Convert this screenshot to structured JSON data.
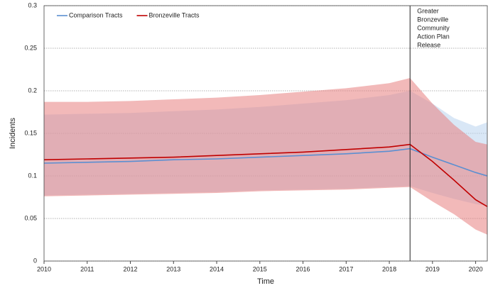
{
  "chart_data": {
    "type": "line",
    "x_label": "Time",
    "y_label": "Incidents",
    "x": [
      2010,
      2011,
      2012,
      2013,
      2014,
      2015,
      2016,
      2017,
      2018,
      2018.48,
      2019,
      2019.5,
      2020,
      2020.27
    ],
    "xlim": [
      2010,
      2020.27
    ],
    "xticks": [
      2010,
      2011,
      2012,
      2013,
      2014,
      2015,
      2016,
      2017,
      2018,
      2019,
      2020
    ],
    "ylim": [
      0,
      0.3
    ],
    "yticks": [
      0,
      0.05,
      0.1,
      0.15,
      0.2,
      0.25,
      0.3
    ],
    "grid": true,
    "legend": "top-left",
    "series": [
      {
        "name": "Comparison Tracts",
        "color": "#5b8fd1",
        "band_color": "#b9d3ee",
        "values": [
          0.115,
          0.116,
          0.117,
          0.119,
          0.12,
          0.122,
          0.124,
          0.126,
          0.129,
          0.132,
          0.122,
          0.113,
          0.104,
          0.1
        ],
        "upper": [
          0.172,
          0.173,
          0.174,
          0.176,
          0.178,
          0.181,
          0.185,
          0.189,
          0.195,
          0.2,
          0.185,
          0.168,
          0.158,
          0.163
        ],
        "lower": [
          0.077,
          0.078,
          0.079,
          0.08,
          0.081,
          0.083,
          0.084,
          0.085,
          0.087,
          0.088,
          0.08,
          0.073,
          0.067,
          0.065
        ]
      },
      {
        "name": "Bronzeville Tracts",
        "color": "#c00000",
        "band_color": "#e88080",
        "values": [
          0.119,
          0.12,
          0.121,
          0.122,
          0.124,
          0.126,
          0.128,
          0.131,
          0.134,
          0.137,
          0.117,
          0.095,
          0.072,
          0.064
        ],
        "upper": [
          0.187,
          0.187,
          0.188,
          0.19,
          0.192,
          0.195,
          0.199,
          0.203,
          0.209,
          0.215,
          0.185,
          0.16,
          0.14,
          0.137
        ],
        "lower": [
          0.076,
          0.077,
          0.078,
          0.079,
          0.08,
          0.082,
          0.083,
          0.084,
          0.086,
          0.087,
          0.07,
          0.055,
          0.037,
          0.031
        ]
      }
    ],
    "annotation": {
      "x": 2018.48,
      "lines": [
        "Greater",
        "Bronzeville",
        "Community",
        "Action Plan",
        "Release"
      ]
    }
  }
}
